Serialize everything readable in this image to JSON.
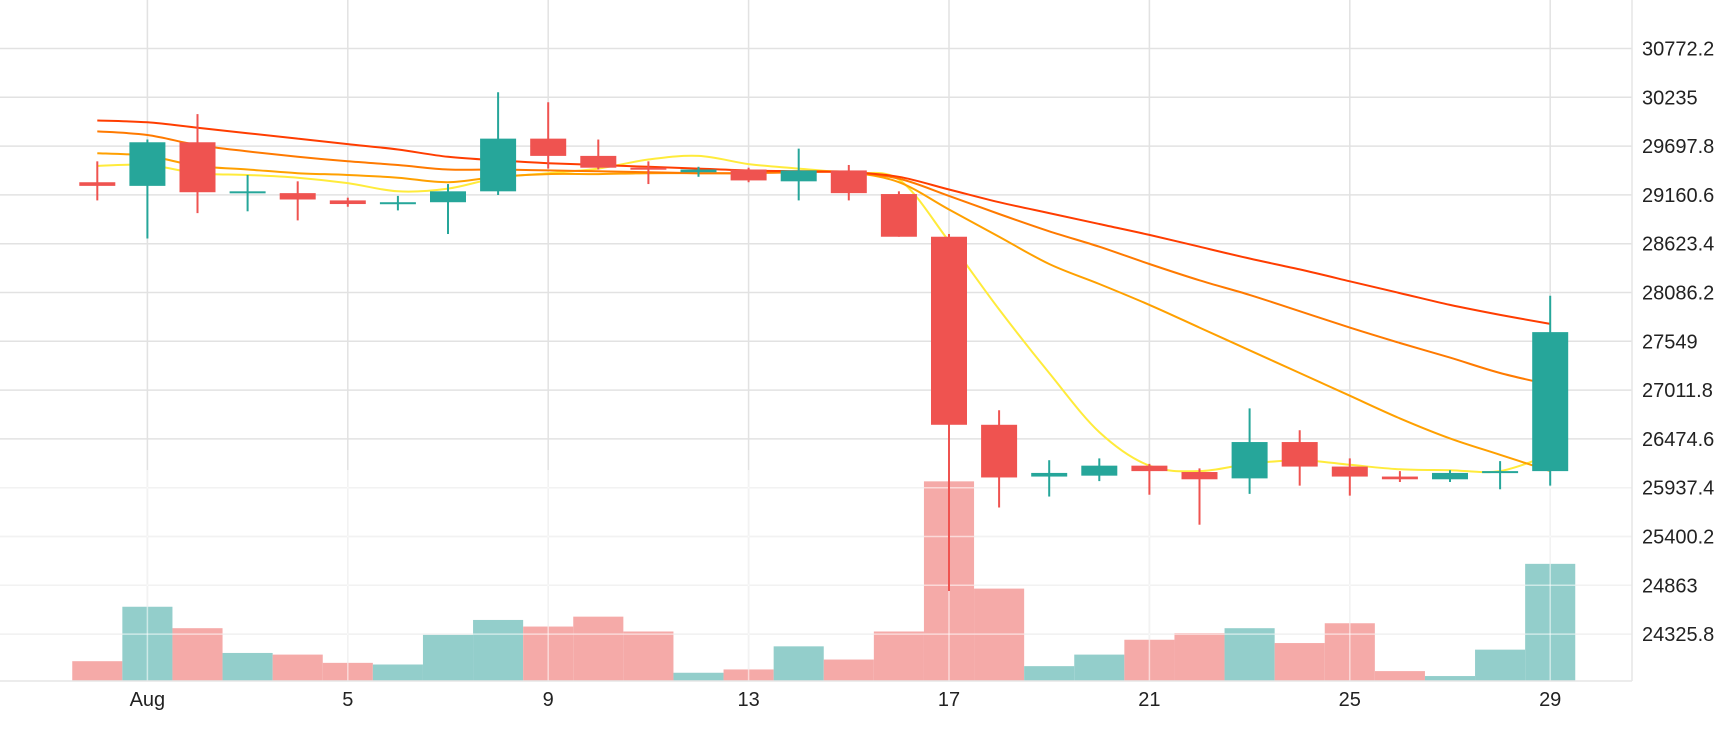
{
  "chart_data": {
    "type": "candlestick",
    "x_tick_labels": [
      {
        "day": 1,
        "label": "Aug"
      },
      {
        "day": 5,
        "label": "5"
      },
      {
        "day": 9,
        "label": "9"
      },
      {
        "day": 13,
        "label": "13"
      },
      {
        "day": 17,
        "label": "17"
      },
      {
        "day": 21,
        "label": "21"
      },
      {
        "day": 25,
        "label": "25"
      },
      {
        "day": 29,
        "label": "29"
      }
    ],
    "y_ticks": [
      "30772.2",
      "30235",
      "29697.8",
      "29160.6",
      "28623.4",
      "28086.2",
      "27549",
      "27011.8",
      "26474.6",
      "25937.4",
      "25400.2",
      "24863",
      "24325.8"
    ],
    "ylim": [
      24000,
      31000
    ],
    "xlim": [
      -0.6,
      30.1
    ],
    "grid": true,
    "colors": {
      "up": "#26a69a",
      "down": "#ef5350",
      "volume_up": "#93cecb",
      "volume_down": "#f5aaa8",
      "grid": "#e2e2e2"
    },
    "candles": [
      {
        "day": 0,
        "open": 29300,
        "high": 29530,
        "low": 29100,
        "close": 29260
      },
      {
        "day": 1,
        "open": 29260,
        "high": 29770,
        "low": 28680,
        "close": 29740
      },
      {
        "day": 2,
        "open": 29740,
        "high": 30050,
        "low": 28960,
        "close": 29190
      },
      {
        "day": 3,
        "open": 29190,
        "high": 29380,
        "low": 28980,
        "close": 29200
      },
      {
        "day": 4,
        "open": 29180,
        "high": 29310,
        "low": 28880,
        "close": 29110
      },
      {
        "day": 5,
        "open": 29100,
        "high": 29130,
        "low": 29030,
        "close": 29060
      },
      {
        "day": 6,
        "open": 29060,
        "high": 29150,
        "low": 28990,
        "close": 29080
      },
      {
        "day": 7,
        "open": 29080,
        "high": 29280,
        "low": 28730,
        "close": 29200
      },
      {
        "day": 8,
        "open": 29200,
        "high": 30290,
        "low": 29160,
        "close": 29780
      },
      {
        "day": 9,
        "open": 29780,
        "high": 30180,
        "low": 29450,
        "close": 29590
      },
      {
        "day": 10,
        "open": 29590,
        "high": 29770,
        "low": 29440,
        "close": 29460
      },
      {
        "day": 11,
        "open": 29460,
        "high": 29530,
        "low": 29280,
        "close": 29440
      },
      {
        "day": 12,
        "open": 29410,
        "high": 29470,
        "low": 29360,
        "close": 29440
      },
      {
        "day": 13,
        "open": 29440,
        "high": 29460,
        "low": 29300,
        "close": 29320
      },
      {
        "day": 14,
        "open": 29310,
        "high": 29670,
        "low": 29100,
        "close": 29430
      },
      {
        "day": 15,
        "open": 29430,
        "high": 29490,
        "low": 29100,
        "close": 29180
      },
      {
        "day": 16,
        "open": 29170,
        "high": 29200,
        "low": 28700,
        "close": 28700
      },
      {
        "day": 17,
        "open": 28700,
        "high": 28730,
        "low": 24800,
        "close": 26630
      },
      {
        "day": 18,
        "open": 26630,
        "high": 26790,
        "low": 25720,
        "close": 26050
      },
      {
        "day": 19,
        "open": 26060,
        "high": 26240,
        "low": 25840,
        "close": 26100
      },
      {
        "day": 20,
        "open": 26070,
        "high": 26260,
        "low": 26010,
        "close": 26180
      },
      {
        "day": 21,
        "open": 26180,
        "high": 26200,
        "low": 25860,
        "close": 26120
      },
      {
        "day": 22,
        "open": 26110,
        "high": 26150,
        "low": 25530,
        "close": 26030
      },
      {
        "day": 23,
        "open": 26040,
        "high": 26810,
        "low": 25870,
        "close": 26440
      },
      {
        "day": 24,
        "open": 26440,
        "high": 26570,
        "low": 25960,
        "close": 26170
      },
      {
        "day": 25,
        "open": 26170,
        "high": 26260,
        "low": 25850,
        "close": 26060
      },
      {
        "day": 26,
        "open": 26060,
        "high": 26120,
        "low": 26000,
        "close": 26030
      },
      {
        "day": 27,
        "open": 26030,
        "high": 26130,
        "low": 26000,
        "close": 26100
      },
      {
        "day": 28,
        "open": 26100,
        "high": 26230,
        "low": 25920,
        "close": 26120
      },
      {
        "day": 29,
        "open": 26120,
        "high": 28050,
        "low": 25960,
        "close": 27650
      }
    ],
    "volume": {
      "ylim": [
        0,
        120
      ],
      "bars": [
        {
          "day": 0,
          "value": 12,
          "direction": "down"
        },
        {
          "day": 1,
          "value": 45,
          "direction": "up"
        },
        {
          "day": 2,
          "value": 32,
          "direction": "down"
        },
        {
          "day": 3,
          "value": 17,
          "direction": "up"
        },
        {
          "day": 4,
          "value": 16,
          "direction": "down"
        },
        {
          "day": 5,
          "value": 11,
          "direction": "down"
        },
        {
          "day": 6,
          "value": 10,
          "direction": "up"
        },
        {
          "day": 7,
          "value": 28,
          "direction": "up"
        },
        {
          "day": 8,
          "value": 37,
          "direction": "up"
        },
        {
          "day": 9,
          "value": 33,
          "direction": "down"
        },
        {
          "day": 10,
          "value": 39,
          "direction": "down"
        },
        {
          "day": 11,
          "value": 30,
          "direction": "down"
        },
        {
          "day": 12,
          "value": 5,
          "direction": "up"
        },
        {
          "day": 13,
          "value": 7,
          "direction": "down"
        },
        {
          "day": 14,
          "value": 21,
          "direction": "up"
        },
        {
          "day": 15,
          "value": 13,
          "direction": "down"
        },
        {
          "day": 16,
          "value": 30,
          "direction": "down"
        },
        {
          "day": 17,
          "value": 121,
          "direction": "down"
        },
        {
          "day": 18,
          "value": 56,
          "direction": "down"
        },
        {
          "day": 19,
          "value": 9,
          "direction": "up"
        },
        {
          "day": 20,
          "value": 16,
          "direction": "up"
        },
        {
          "day": 21,
          "value": 25,
          "direction": "down"
        },
        {
          "day": 22,
          "value": 29,
          "direction": "down"
        },
        {
          "day": 23,
          "value": 32,
          "direction": "up"
        },
        {
          "day": 24,
          "value": 23,
          "direction": "down"
        },
        {
          "day": 25,
          "value": 35,
          "direction": "down"
        },
        {
          "day": 26,
          "value": 6,
          "direction": "down"
        },
        {
          "day": 27,
          "value": 3,
          "direction": "up"
        },
        {
          "day": 28,
          "value": 19,
          "direction": "up"
        },
        {
          "day": 29,
          "value": 71,
          "direction": "up"
        }
      ]
    },
    "moving_averages": [
      {
        "color": "#ffeb3b",
        "points": [
          [
            0,
            29480
          ],
          [
            1,
            29490
          ],
          [
            2,
            29400
          ],
          [
            3,
            29380
          ],
          [
            4,
            29350
          ],
          [
            5,
            29290
          ],
          [
            6,
            29200
          ],
          [
            7,
            29230
          ],
          [
            8,
            29350
          ],
          [
            9,
            29400
          ],
          [
            10,
            29450
          ],
          [
            11,
            29550
          ],
          [
            12,
            29590
          ],
          [
            13,
            29500
          ],
          [
            14,
            29450
          ],
          [
            15,
            29400
          ],
          [
            16,
            29330
          ],
          [
            17,
            28650
          ],
          [
            18,
            27900
          ],
          [
            19,
            27200
          ],
          [
            20,
            26550
          ],
          [
            21,
            26180
          ],
          [
            22,
            26120
          ],
          [
            23,
            26200
          ],
          [
            24,
            26240
          ],
          [
            25,
            26190
          ],
          [
            26,
            26140
          ],
          [
            27,
            26130
          ],
          [
            28,
            26120
          ],
          [
            29,
            26300
          ]
        ]
      },
      {
        "color": "#ffa000",
        "points": [
          [
            0,
            29620
          ],
          [
            1,
            29590
          ],
          [
            2,
            29480
          ],
          [
            3,
            29440
          ],
          [
            4,
            29400
          ],
          [
            5,
            29380
          ],
          [
            6,
            29350
          ],
          [
            7,
            29300
          ],
          [
            8,
            29360
          ],
          [
            9,
            29390
          ],
          [
            10,
            29390
          ],
          [
            11,
            29400
          ],
          [
            12,
            29400
          ],
          [
            13,
            29400
          ],
          [
            14,
            29420
          ],
          [
            15,
            29410
          ],
          [
            16,
            29300
          ],
          [
            17,
            29000
          ],
          [
            18,
            28700
          ],
          [
            19,
            28400
          ],
          [
            20,
            28180
          ],
          [
            21,
            27950
          ],
          [
            22,
            27700
          ],
          [
            23,
            27450
          ],
          [
            24,
            27200
          ],
          [
            25,
            26950
          ],
          [
            26,
            26700
          ],
          [
            27,
            26480
          ],
          [
            28,
            26300
          ],
          [
            29,
            26120
          ]
        ]
      },
      {
        "color": "#ff7a00",
        "points": [
          [
            0,
            29860
          ],
          [
            1,
            29820
          ],
          [
            2,
            29710
          ],
          [
            3,
            29640
          ],
          [
            4,
            29580
          ],
          [
            5,
            29530
          ],
          [
            6,
            29490
          ],
          [
            7,
            29440
          ],
          [
            8,
            29440
          ],
          [
            9,
            29430
          ],
          [
            10,
            29420
          ],
          [
            11,
            29410
          ],
          [
            12,
            29400
          ],
          [
            13,
            29400
          ],
          [
            14,
            29410
          ],
          [
            15,
            29410
          ],
          [
            16,
            29340
          ],
          [
            17,
            29150
          ],
          [
            18,
            28950
          ],
          [
            19,
            28760
          ],
          [
            20,
            28590
          ],
          [
            21,
            28400
          ],
          [
            22,
            28220
          ],
          [
            23,
            28060
          ],
          [
            24,
            27880
          ],
          [
            25,
            27700
          ],
          [
            26,
            27530
          ],
          [
            27,
            27370
          ],
          [
            28,
            27200
          ],
          [
            29,
            27070
          ]
        ]
      },
      {
        "color": "#ff3d00",
        "points": [
          [
            0,
            29980
          ],
          [
            1,
            29960
          ],
          [
            2,
            29900
          ],
          [
            3,
            29840
          ],
          [
            4,
            29780
          ],
          [
            5,
            29720
          ],
          [
            6,
            29660
          ],
          [
            7,
            29580
          ],
          [
            8,
            29540
          ],
          [
            9,
            29510
          ],
          [
            10,
            29490
          ],
          [
            11,
            29470
          ],
          [
            12,
            29450
          ],
          [
            13,
            29430
          ],
          [
            14,
            29420
          ],
          [
            15,
            29410
          ],
          [
            16,
            29360
          ],
          [
            17,
            29220
          ],
          [
            18,
            29080
          ],
          [
            19,
            28960
          ],
          [
            20,
            28840
          ],
          [
            21,
            28720
          ],
          [
            22,
            28590
          ],
          [
            23,
            28460
          ],
          [
            24,
            28340
          ],
          [
            25,
            28210
          ],
          [
            26,
            28080
          ],
          [
            27,
            27950
          ],
          [
            28,
            27840
          ],
          [
            29,
            27740
          ]
        ]
      }
    ]
  }
}
